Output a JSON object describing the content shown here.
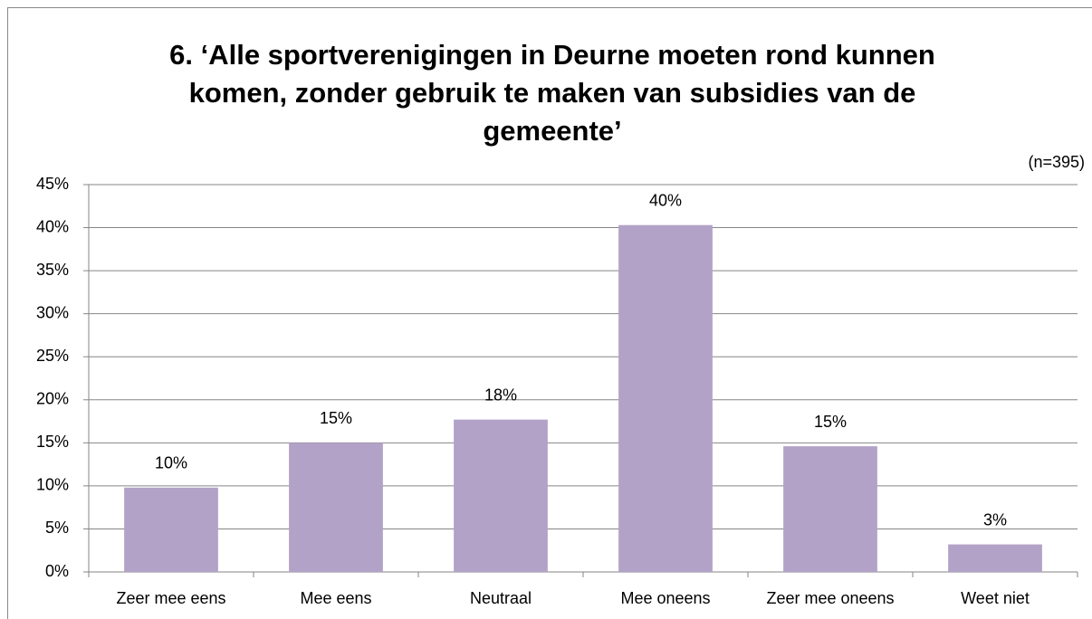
{
  "chart_data": {
    "type": "bar",
    "title": "6. ‘Alle sportverenigingen in Deurne moeten rond kunnen komen, zonder gebruik te maken van subsidies van de gemeente’",
    "annotation": "(n=395)",
    "categories": [
      "Zeer mee eens",
      "Mee eens",
      "Neutraal",
      "Mee oneens",
      "Zeer mee oneens",
      "Weet niet"
    ],
    "values": [
      9.8,
      15.0,
      17.7,
      40.3,
      14.6,
      3.2
    ],
    "value_labels": [
      "10%",
      "15%",
      "18%",
      "40%",
      "15%",
      "3%"
    ],
    "color": "#b3a2c7",
    "ylim": [
      0,
      45
    ],
    "yticks": [
      {
        "value": 0,
        "label": "0%"
      },
      {
        "value": 5,
        "label": "5%"
      },
      {
        "value": 10,
        "label": "10%"
      },
      {
        "value": 15,
        "label": "15%"
      },
      {
        "value": 20,
        "label": "20%"
      },
      {
        "value": 25,
        "label": "25%"
      },
      {
        "value": 30,
        "label": "30%"
      },
      {
        "value": 35,
        "label": "35%"
      },
      {
        "value": 40,
        "label": "40%"
      },
      {
        "value": 45,
        "label": "45%"
      }
    ],
    "grid": true
  }
}
